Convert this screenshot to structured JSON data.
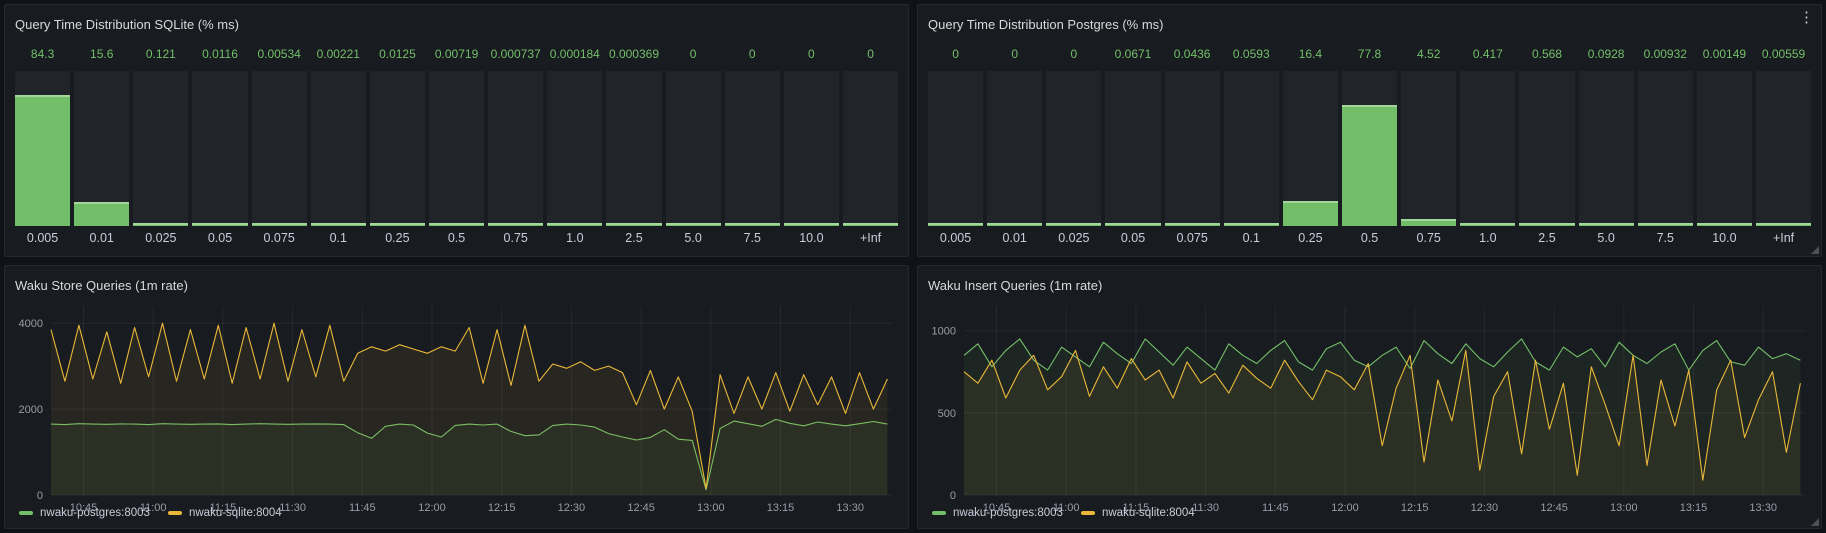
{
  "icons": {
    "panel_menu": "⋮"
  },
  "colors": {
    "green": "#73bf69",
    "yellow": "#eab839",
    "panel_bg": "#181b1f",
    "page_bg": "#111217",
    "track": "#212429"
  },
  "chart_data": [
    {
      "type": "bar",
      "title": "Query Time Distribution SQLite (% ms)",
      "categories": [
        "0.005",
        "0.01",
        "0.025",
        "0.05",
        "0.075",
        "0.1",
        "0.25",
        "0.5",
        "0.75",
        "1.0",
        "2.5",
        "5.0",
        "7.5",
        "10.0",
        "+Inf"
      ],
      "values": [
        84.3,
        15.6,
        0.121,
        0.0116,
        0.00534,
        0.00221,
        0.0125,
        0.00719,
        0.000737,
        0.000184,
        0.000369,
        0,
        0,
        0,
        0
      ],
      "value_labels": [
        "84.3",
        "15.6",
        "0.121",
        "0.0116",
        "0.00534",
        "0.00221",
        "0.0125",
        "0.00719",
        "0.000737",
        "0.000184",
        "0.000369",
        "0",
        "0",
        "0",
        "0"
      ],
      "ylim": [
        0,
        100
      ],
      "bar_color": "#73bf69"
    },
    {
      "type": "bar",
      "title": "Query Time Distribution Postgres (% ms)",
      "categories": [
        "0.005",
        "0.01",
        "0.025",
        "0.05",
        "0.075",
        "0.1",
        "0.25",
        "0.5",
        "0.75",
        "1.0",
        "2.5",
        "5.0",
        "7.5",
        "10.0",
        "+Inf"
      ],
      "values": [
        0,
        0,
        0,
        0.0671,
        0.0436,
        0.0593,
        16.4,
        77.8,
        4.52,
        0.417,
        0.568,
        0.0928,
        0.00932,
        0.00149,
        0.00559
      ],
      "value_labels": [
        "0",
        "0",
        "0",
        "0.0671",
        "0.0436",
        "0.0593",
        "16.4",
        "77.8",
        "4.52",
        "0.417",
        "0.568",
        "0.0928",
        "0.00932",
        "0.00149",
        "0.00559"
      ],
      "ylim": [
        0,
        100
      ],
      "bar_color": "#73bf69"
    },
    {
      "type": "line",
      "title": "Waku Store Queries (1m rate)",
      "xlim": [
        0,
        181
      ],
      "x_start_time": "10:38",
      "x": [
        0,
        3,
        6,
        9,
        12,
        15,
        18,
        21,
        24,
        27,
        30,
        33,
        36,
        39,
        42,
        45,
        48,
        51,
        54,
        57,
        60,
        63,
        66,
        69,
        72,
        75,
        78,
        81,
        84,
        87,
        90,
        93,
        96,
        99,
        102,
        105,
        108,
        111,
        114,
        117,
        120,
        123,
        126,
        129,
        132,
        135,
        138,
        141,
        144,
        147,
        150,
        153,
        156,
        159,
        162,
        165,
        168,
        171,
        174,
        177,
        180
      ],
      "x_ticks": [
        {
          "t": 7,
          "label": "10:45"
        },
        {
          "t": 22,
          "label": "11:00"
        },
        {
          "t": 37,
          "label": "11:15"
        },
        {
          "t": 52,
          "label": "11:30"
        },
        {
          "t": 67,
          "label": "11:45"
        },
        {
          "t": 82,
          "label": "12:00"
        },
        {
          "t": 97,
          "label": "12:15"
        },
        {
          "t": 112,
          "label": "12:30"
        },
        {
          "t": 127,
          "label": "12:45"
        },
        {
          "t": 142,
          "label": "13:00"
        },
        {
          "t": 157,
          "label": "13:15"
        },
        {
          "t": 172,
          "label": "13:30"
        }
      ],
      "ylim": [
        0,
        4400
      ],
      "y_ticks": [
        0,
        2000,
        4000
      ],
      "grid": true,
      "legend_position": "bottom",
      "series": [
        {
          "name": "nwaku-postgres:8003",
          "color": "#73bf69",
          "values": [
            1650,
            1640,
            1660,
            1650,
            1645,
            1655,
            1650,
            1640,
            1660,
            1650,
            1645,
            1650,
            1655,
            1640,
            1650,
            1660,
            1650,
            1645,
            1650,
            1655,
            1650,
            1640,
            1450,
            1320,
            1600,
            1650,
            1630,
            1440,
            1350,
            1620,
            1650,
            1630,
            1650,
            1480,
            1380,
            1400,
            1620,
            1650,
            1630,
            1580,
            1430,
            1350,
            1280,
            1340,
            1520,
            1300,
            1270,
            120,
            1550,
            1720,
            1660,
            1600,
            1760,
            1670,
            1610,
            1700,
            1650,
            1610,
            1660,
            1710,
            1650
          ]
        },
        {
          "name": "nwaku-sqlite:8004",
          "color": "#eab839",
          "values": [
            3850,
            2650,
            3950,
            2700,
            3800,
            2600,
            3900,
            2750,
            4000,
            2650,
            3850,
            2700,
            3950,
            2600,
            3900,
            2700,
            4000,
            2650,
            3850,
            2750,
            3950,
            2650,
            3300,
            3450,
            3350,
            3500,
            3400,
            3300,
            3450,
            3350,
            3900,
            2600,
            3850,
            2550,
            3950,
            2650,
            3050,
            2950,
            3100,
            2900,
            3000,
            2850,
            2100,
            2900,
            2000,
            2750,
            1950,
            150,
            2800,
            1900,
            2750,
            2000,
            2850,
            1950,
            2800,
            2100,
            2750,
            1900,
            2850,
            2000,
            2700
          ]
        }
      ]
    },
    {
      "type": "line",
      "title": "Waku Insert Queries (1m rate)",
      "xlim": [
        0,
        181
      ],
      "x_start_time": "10:38",
      "x": [
        0,
        3,
        6,
        9,
        12,
        15,
        18,
        21,
        24,
        27,
        30,
        33,
        36,
        39,
        42,
        45,
        48,
        51,
        54,
        57,
        60,
        63,
        66,
        69,
        72,
        75,
        78,
        81,
        84,
        87,
        90,
        93,
        96,
        99,
        102,
        105,
        108,
        111,
        114,
        117,
        120,
        123,
        126,
        129,
        132,
        135,
        138,
        141,
        144,
        147,
        150,
        153,
        156,
        159,
        162,
        165,
        168,
        171,
        174,
        177,
        180
      ],
      "x_ticks": [
        {
          "t": 7,
          "label": "10:45"
        },
        {
          "t": 22,
          "label": "11:00"
        },
        {
          "t": 37,
          "label": "11:15"
        },
        {
          "t": 52,
          "label": "11:30"
        },
        {
          "t": 67,
          "label": "11:45"
        },
        {
          "t": 82,
          "label": "12:00"
        },
        {
          "t": 97,
          "label": "12:15"
        },
        {
          "t": 112,
          "label": "12:30"
        },
        {
          "t": 127,
          "label": "12:45"
        },
        {
          "t": 142,
          "label": "13:00"
        },
        {
          "t": 157,
          "label": "13:15"
        },
        {
          "t": 172,
          "label": "13:30"
        }
      ],
      "ylim": [
        0,
        1150
      ],
      "y_ticks": [
        0,
        500,
        1000
      ],
      "grid": true,
      "legend_position": "bottom",
      "series": [
        {
          "name": "nwaku-postgres:8003",
          "color": "#73bf69",
          "values": [
            850,
            920,
            780,
            880,
            950,
            820,
            760,
            900,
            840,
            780,
            930,
            860,
            800,
            950,
            870,
            790,
            900,
            830,
            760,
            920,
            850,
            800,
            880,
            940,
            810,
            760,
            890,
            930,
            820,
            780,
            850,
            900,
            770,
            940,
            860,
            800,
            920,
            830,
            780,
            870,
            950,
            810,
            760,
            900,
            840,
            890,
            780,
            930,
            850,
            800,
            870,
            920,
            760,
            880,
            940,
            810,
            790,
            900,
            830,
            860,
            820
          ]
        },
        {
          "name": "nwaku-sqlite:8004",
          "color": "#eab839",
          "values": [
            750,
            680,
            820,
            590,
            760,
            850,
            640,
            720,
            880,
            600,
            780,
            650,
            830,
            700,
            760,
            590,
            810,
            680,
            740,
            620,
            790,
            710,
            650,
            820,
            690,
            580,
            760,
            720,
            640,
            800,
            300,
            650,
            850,
            200,
            700,
            450,
            880,
            150,
            600,
            750,
            250,
            820,
            400,
            680,
            120,
            780,
            550,
            300,
            850,
            180,
            700,
            420,
            760,
            90,
            640,
            820,
            350,
            580,
            750,
            260,
            680
          ]
        }
      ]
    }
  ]
}
